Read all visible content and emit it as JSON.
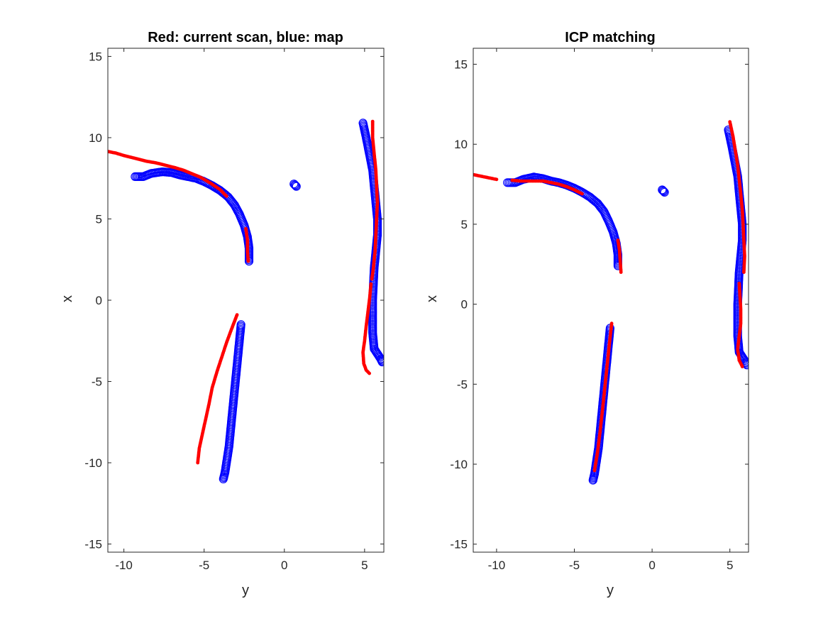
{
  "chart_data": [
    {
      "type": "scatter",
      "title": "Red: current scan, blue: map",
      "xlabel": "y",
      "ylabel": "x",
      "xlim": [
        -11,
        6.2
      ],
      "ylim": [
        -15.5,
        15.5
      ],
      "xticks": [
        -10,
        -5,
        0,
        5
      ],
      "yticks": [
        -15,
        -10,
        -5,
        0,
        5,
        10,
        15
      ],
      "grid": false,
      "series": [
        {
          "color": "#0000ff",
          "marker": "circle",
          "paths": [
            [
              [
                -9.3,
                7.6
              ],
              [
                -8.8,
                7.6
              ],
              [
                -8.3,
                7.8
              ],
              [
                -7.6,
                7.9
              ],
              [
                -7.0,
                7.85
              ],
              [
                -6.5,
                7.7
              ],
              [
                -6.0,
                7.6
              ],
              [
                -5.5,
                7.5
              ],
              [
                -5.0,
                7.3
              ],
              [
                -4.5,
                7.05
              ],
              [
                -4.0,
                6.75
              ],
              [
                -3.5,
                6.35
              ],
              [
                -3.1,
                5.85
              ],
              [
                -2.8,
                5.3
              ],
              [
                -2.5,
                4.6
              ],
              [
                -2.3,
                3.9
              ],
              [
                -2.2,
                3.2
              ],
              [
                -2.2,
                2.4
              ]
            ],
            [
              [
                4.9,
                10.9
              ],
              [
                5.1,
                10.0
              ],
              [
                5.3,
                9.0
              ],
              [
                5.5,
                8.0
              ],
              [
                5.6,
                7.0
              ],
              [
                5.7,
                6.0
              ],
              [
                5.8,
                5.0
              ],
              [
                5.8,
                4.0
              ],
              [
                5.7,
                3.0
              ],
              [
                5.6,
                2.0
              ],
              [
                5.55,
                1.0
              ],
              [
                5.5,
                0.0
              ],
              [
                5.5,
                -1.0
              ],
              [
                5.5,
                -2.0
              ],
              [
                5.6,
                -3.0
              ],
              [
                5.8,
                -3.3
              ],
              [
                6.0,
                -3.6
              ],
              [
                6.1,
                -3.8
              ]
            ],
            [
              [
                -2.7,
                -1.5
              ],
              [
                -2.85,
                -3.0
              ],
              [
                -3.05,
                -5.0
              ],
              [
                -3.25,
                -7.0
              ],
              [
                -3.45,
                -9.0
              ],
              [
                -3.7,
                -10.6
              ],
              [
                -3.8,
                -11.0
              ]
            ],
            [
              [
                0.6,
                7.15
              ],
              [
                0.75,
                7.0
              ]
            ]
          ]
        },
        {
          "color": "#ff0000",
          "marker": "dot",
          "paths": [
            [
              [
                -11.0,
                9.15
              ],
              [
                -10.5,
                9.05
              ],
              [
                -10.0,
                8.9
              ],
              [
                -9.2,
                8.7
              ],
              [
                -8.6,
                8.55
              ],
              [
                -8.0,
                8.45
              ],
              [
                -7.4,
                8.3
              ],
              [
                -6.8,
                8.15
              ],
              [
                -6.3,
                8.0
              ],
              [
                -5.8,
                7.8
              ],
              [
                -5.2,
                7.55
              ],
              [
                -4.6,
                7.2
              ],
              [
                -4.0,
                6.8
              ],
              [
                -3.6,
                6.4
              ]
            ],
            [
              [
                -2.4,
                4.4
              ],
              [
                -2.3,
                3.7
              ],
              [
                -2.3,
                3.0
              ],
              [
                -2.25,
                2.4
              ]
            ],
            [
              [
                5.5,
                11.0
              ],
              [
                5.5,
                10.0
              ],
              [
                5.6,
                9.0
              ],
              [
                5.7,
                8.0
              ],
              [
                5.75,
                7.0
              ],
              [
                5.8,
                6.0
              ],
              [
                5.75,
                5.0
              ],
              [
                5.7,
                4.0
              ],
              [
                5.65,
                3.0
              ],
              [
                5.55,
                2.0
              ],
              [
                5.45,
                1.3
              ]
            ],
            [
              [
                5.4,
                1.0
              ],
              [
                5.3,
                0.0
              ],
              [
                5.2,
                -0.8
              ],
              [
                5.1,
                -1.6
              ],
              [
                5.0,
                -2.5
              ],
              [
                4.9,
                -3.2
              ],
              [
                4.95,
                -3.9
              ],
              [
                5.1,
                -4.3
              ],
              [
                5.3,
                -4.5
              ]
            ],
            [
              [
                -2.95,
                -0.9
              ],
              [
                -3.3,
                -1.8
              ],
              [
                -3.6,
                -2.6
              ],
              [
                -3.9,
                -3.5
              ],
              [
                -4.2,
                -4.4
              ],
              [
                -4.5,
                -5.4
              ],
              [
                -4.7,
                -6.4
              ],
              [
                -4.9,
                -7.3
              ],
              [
                -5.1,
                -8.2
              ],
              [
                -5.3,
                -9.1
              ],
              [
                -5.4,
                -10.0
              ]
            ]
          ]
        }
      ]
    },
    {
      "type": "scatter",
      "title": "ICP matching",
      "xlabel": "y",
      "ylabel": "x",
      "xlim": [
        -11.5,
        6.2
      ],
      "ylim": [
        -15.5,
        16
      ],
      "xticks": [
        -10,
        -5,
        0,
        5
      ],
      "yticks": [
        -15,
        -10,
        -5,
        0,
        5,
        10,
        15
      ],
      "grid": false,
      "series": [
        {
          "color": "#0000ff",
          "marker": "circle",
          "paths": [
            [
              [
                -9.3,
                7.6
              ],
              [
                -8.8,
                7.6
              ],
              [
                -8.3,
                7.8
              ],
              [
                -7.6,
                7.95
              ],
              [
                -7.0,
                7.85
              ],
              [
                -6.5,
                7.7
              ],
              [
                -6.0,
                7.6
              ],
              [
                -5.5,
                7.45
              ],
              [
                -5.0,
                7.25
              ],
              [
                -4.5,
                7.0
              ],
              [
                -4.0,
                6.7
              ],
              [
                -3.5,
                6.3
              ],
              [
                -3.1,
                5.8
              ],
              [
                -2.8,
                5.2
              ],
              [
                -2.5,
                4.5
              ],
              [
                -2.3,
                3.8
              ],
              [
                -2.2,
                3.1
              ],
              [
                -2.2,
                2.4
              ]
            ],
            [
              [
                4.9,
                10.9
              ],
              [
                5.1,
                10.0
              ],
              [
                5.3,
                9.0
              ],
              [
                5.5,
                8.0
              ],
              [
                5.6,
                7.0
              ],
              [
                5.7,
                6.0
              ],
              [
                5.8,
                5.0
              ],
              [
                5.8,
                4.0
              ],
              [
                5.7,
                3.0
              ],
              [
                5.6,
                2.0
              ],
              [
                5.55,
                1.0
              ],
              [
                5.5,
                0.0
              ],
              [
                5.5,
                -1.0
              ],
              [
                5.5,
                -2.0
              ],
              [
                5.6,
                -3.0
              ],
              [
                5.8,
                -3.3
              ],
              [
                6.0,
                -3.6
              ],
              [
                6.1,
                -3.8
              ]
            ],
            [
              [
                -2.7,
                -1.5
              ],
              [
                -2.85,
                -3.0
              ],
              [
                -3.05,
                -5.0
              ],
              [
                -3.25,
                -7.0
              ],
              [
                -3.45,
                -9.0
              ],
              [
                -3.7,
                -10.6
              ],
              [
                -3.8,
                -11.0
              ]
            ],
            [
              [
                0.65,
                7.15
              ],
              [
                0.8,
                7.0
              ]
            ]
          ]
        },
        {
          "color": "#ff0000",
          "marker": "dot",
          "paths": [
            [
              [
                -11.5,
                8.1
              ],
              [
                -11.0,
                8.0
              ],
              [
                -10.5,
                7.9
              ],
              [
                -10.0,
                7.8
              ]
            ],
            [
              [
                -9.0,
                7.75
              ],
              [
                -8.5,
                7.7
              ],
              [
                -8.0,
                7.7
              ],
              [
                -7.5,
                7.7
              ],
              [
                -7.0,
                7.7
              ],
              [
                -6.5,
                7.6
              ],
              [
                -6.0,
                7.5
              ],
              [
                -5.5,
                7.35
              ],
              [
                -5.0,
                7.15
              ],
              [
                -4.5,
                6.9
              ]
            ],
            [
              [
                -2.2,
                4.0
              ],
              [
                -2.1,
                3.4
              ],
              [
                -2.05,
                2.7
              ],
              [
                -2.0,
                2.0
              ]
            ],
            [
              [
                5.0,
                11.4
              ],
              [
                5.2,
                10.5
              ],
              [
                5.35,
                9.6
              ],
              [
                5.5,
                8.7
              ],
              [
                5.6,
                7.8
              ],
              [
                5.7,
                6.9
              ],
              [
                5.8,
                5.9
              ],
              [
                5.85,
                5.0
              ],
              [
                5.9,
                4.0
              ],
              [
                5.95,
                3.0
              ],
              [
                5.9,
                2.0
              ]
            ],
            [
              [
                5.6,
                1.3
              ],
              [
                5.65,
                0.5
              ],
              [
                5.7,
                -0.3
              ],
              [
                5.7,
                -1.2
              ],
              [
                5.6,
                -2.0
              ],
              [
                5.5,
                -2.8
              ],
              [
                5.6,
                -3.5
              ],
              [
                5.8,
                -3.9
              ]
            ],
            [
              [
                -2.6,
                -1.2
              ],
              [
                -2.75,
                -2.5
              ],
              [
                -2.9,
                -3.9
              ],
              [
                -3.05,
                -5.3
              ],
              [
                -3.2,
                -6.7
              ],
              [
                -3.35,
                -8.0
              ],
              [
                -3.5,
                -9.2
              ],
              [
                -3.7,
                -10.4
              ]
            ]
          ]
        }
      ]
    }
  ]
}
